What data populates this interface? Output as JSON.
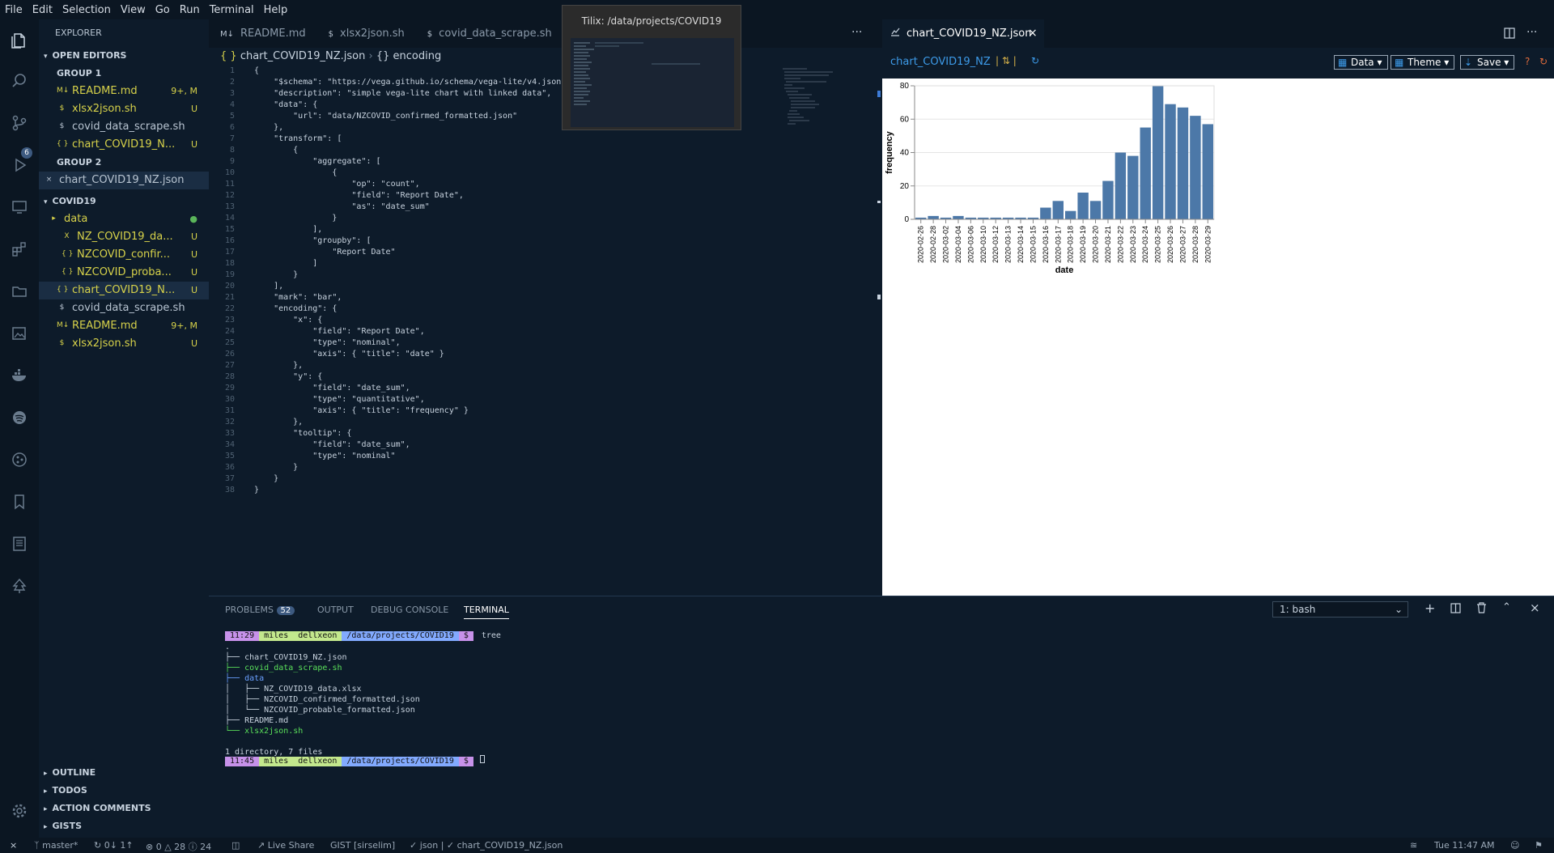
{
  "menu": [
    "File",
    "Edit",
    "Selection",
    "View",
    "Go",
    "Run",
    "Terminal",
    "Help"
  ],
  "activity": {
    "source_control_badge": "6"
  },
  "sidebar": {
    "title": "EXPLORER",
    "open_editors": "OPEN EDITORS",
    "group1": "GROUP 1",
    "group1_items": [
      {
        "name": "README.md",
        "badge": "9+, M",
        "icon": "M↓"
      },
      {
        "name": "xlsx2json.sh",
        "badge": "U",
        "icon": "$"
      },
      {
        "name": "covid_data_scrape.sh",
        "badge": "",
        "icon": "$"
      },
      {
        "name": "chart_COVID19_N...",
        "badge": "U",
        "icon": "{ }"
      }
    ],
    "group2": "GROUP 2",
    "group2_items": [
      {
        "name": "chart_COVID19_NZ.json",
        "badge": "",
        "icon": "×"
      }
    ],
    "folder": "COVID19",
    "tree": [
      {
        "name": "data",
        "badge": "●",
        "icon": "▸"
      },
      {
        "name": "NZ_COVID19_da...",
        "badge": "U",
        "icon": "X"
      },
      {
        "name": "NZCOVID_confir...",
        "badge": "U",
        "icon": "{ }"
      },
      {
        "name": "NZCOVID_proba...",
        "badge": "U",
        "icon": "{ }"
      },
      {
        "name": "chart_COVID19_N...",
        "badge": "U",
        "icon": "{ }"
      },
      {
        "name": "covid_data_scrape.sh",
        "badge": "",
        "icon": "$"
      },
      {
        "name": "README.md",
        "badge": "9+, M",
        "icon": "M↓"
      },
      {
        "name": "xlsx2json.sh",
        "badge": "U",
        "icon": "$"
      }
    ],
    "bottom_sections": [
      "OUTLINE",
      "TODOS",
      "ACTION COMMENTS",
      "GISTS"
    ]
  },
  "editor": {
    "tabs": [
      "README.md",
      "xlsx2json.sh",
      "covid_data_scrape.sh"
    ],
    "tab_icons": [
      "M↓",
      "$",
      "$"
    ],
    "breadcrumb_file": "chart_COVID19_NZ.json",
    "breadcrumb_node": "encoding",
    "more_icon": "···",
    "lines": [
      "{",
      "    \"$schema\": \"https://vega.github.io/schema/vega-lite/v4.json\",",
      "    \"description\": \"simple vega-lite chart with linked data\",",
      "    \"data\": {",
      "        \"url\": \"data/NZCOVID_confirmed_formatted.json\"",
      "    },",
      "    \"transform\": [",
      "        {",
      "            \"aggregate\": [",
      "                {",
      "                    \"op\": \"count\",",
      "                    \"field\": \"Report Date\",",
      "                    \"as\": \"date_sum\"",
      "                }",
      "            ],",
      "            \"groupby\": [",
      "                \"Report Date\"",
      "            ]",
      "        }",
      "    ],",
      "    \"mark\": \"bar\",",
      "    \"encoding\": {",
      "        \"x\": {",
      "            \"field\": \"Report Date\",",
      "            \"type\": \"nominal\",",
      "            \"axis\": { \"title\": \"date\" }",
      "        },",
      "        \"y\": {",
      "            \"field\": \"date_sum\",",
      "            \"type\": \"quantitative\",",
      "            \"axis\": { \"title\": \"frequency\" }",
      "        },",
      "        \"tooltip\": {",
      "            \"field\": \"date_sum\",",
      "            \"type\": \"nominal\"",
      "        }",
      "    }",
      "}"
    ]
  },
  "tilix_tooltip": "Tilix: /data/projects/COVID19",
  "preview": {
    "tab": "chart_COVID19_NZ.json",
    "title": "chart_COVID19_NZ",
    "buttons": [
      "Data",
      "Theme",
      "Save"
    ],
    "help": "?"
  },
  "chart_data": {
    "type": "bar",
    "categories": [
      "2020-02-26",
      "2020-02-28",
      "2020-03-02",
      "2020-03-04",
      "2020-03-06",
      "2020-03-10",
      "2020-03-12",
      "2020-03-13",
      "2020-03-14",
      "2020-03-15",
      "2020-03-16",
      "2020-03-17",
      "2020-03-18",
      "2020-03-19",
      "2020-03-20",
      "2020-03-21",
      "2020-03-22",
      "2020-03-23",
      "2020-03-24",
      "2020-03-25",
      "2020-03-26",
      "2020-03-27",
      "2020-03-28",
      "2020-03-29"
    ],
    "values": [
      1,
      2,
      1,
      2,
      1,
      1,
      1,
      1,
      1,
      1,
      7,
      11,
      5,
      16,
      11,
      23,
      40,
      38,
      55,
      80,
      69,
      67,
      62,
      57
    ],
    "xlabel": "date",
    "ylabel": "frequency",
    "yticks": [
      "0",
      "20",
      "40",
      "60",
      "80"
    ],
    "ylim": [
      0,
      80
    ],
    "bar_color": "#4c78a8"
  },
  "panel": {
    "tabs": [
      "PROBLEMS",
      "OUTPUT",
      "DEBUG CONSOLE",
      "TERMINAL"
    ],
    "problems_count": "52",
    "terminal_select": "1: bash",
    "prompt1": {
      "time": "11:29",
      "user": "miles",
      "host": "dellxeon",
      "path": "/data/projects/COVID19",
      "sym": "$",
      "cmd": "tree"
    },
    "tree_output": [
      ".",
      "├── chart_COVID19_NZ.json",
      "├── covid_data_scrape.sh",
      "├── data",
      "│   ├── NZ_COVID19_data.xlsx",
      "│   ├── NZCOVID_confirmed_formatted.json",
      "│   └── NZCOVID_probable_formatted.json",
      "├── README.md",
      "└── xlsx2json.sh",
      "",
      "1 directory, 7 files"
    ],
    "prompt2": {
      "time": "11:45",
      "user": "miles",
      "host": "dellxeon",
      "path": "/data/projects/COVID19",
      "sym": "$"
    }
  },
  "status": {
    "branch": "master*",
    "sync": "0↓ 1↑",
    "errors": "0",
    "warnings": "28",
    "info": "24",
    "live_share": "Live Share",
    "gist": "GIST [sirselim]",
    "lang": "json | ✓ chart_COVID19_NZ.json",
    "time": "Tue 11:47 AM"
  }
}
